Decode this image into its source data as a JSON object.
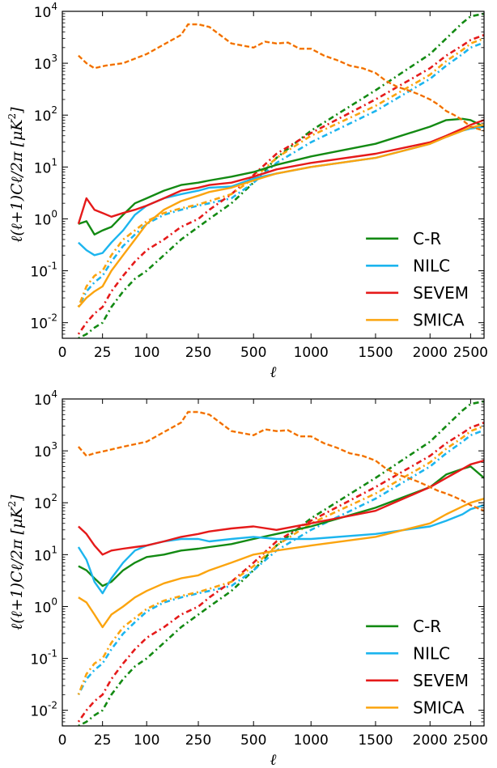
{
  "colors": {
    "C-R": "#138a13",
    "NILC": "#1cb5ee",
    "SEVEM": "#e51a1a",
    "SMICA": "#fba40f",
    "reference": "#fba40f",
    "reference_overlay": "#e51a1a"
  },
  "chart_data": [
    {
      "type": "line",
      "xlabel": "ℓ",
      "ylabel": "ℓ(ℓ+1)Cℓ/2π  [μK²]",
      "ylabel_parts": {
        "main": "ℓ(ℓ+1)Cℓ/2π",
        "unit": "[μK",
        "unit_sup": "2",
        "unit_end": "]"
      },
      "y_scale": "log",
      "ylim": [
        0.005,
        10000
      ],
      "x_scale": "piecewise",
      "x_ticks": [
        "0",
        "25",
        "100",
        "250",
        "500",
        "1000",
        "1500",
        "2000",
        "2500"
      ],
      "y_ticks": [
        {
          "base": "10",
          "exp": "-2"
        },
        {
          "base": "10",
          "exp": "-1"
        },
        {
          "base": "10",
          "exp": "0"
        },
        {
          "base": "10",
          "exp": "1"
        },
        {
          "base": "10",
          "exp": "2"
        },
        {
          "base": "10",
          "exp": "3"
        },
        {
          "base": "10",
          "exp": "4"
        }
      ],
      "legend": [
        "C-R",
        "NILC",
        "SEVEM",
        "SMICA"
      ],
      "legend_position": "lower-right",
      "reference": {
        "style": "dashed",
        "x": [
          10,
          15,
          20,
          30,
          60,
          100,
          150,
          200,
          220,
          250,
          300,
          400,
          500,
          600,
          700,
          800,
          900,
          1000,
          1100,
          1200,
          1300,
          1400,
          1500,
          1600,
          1700,
          1800,
          1900,
          2000,
          2100,
          2200,
          2300,
          2400,
          2500,
          2600
        ],
        "y": [
          1400,
          1000,
          800,
          900,
          1000,
          1500,
          2300,
          3500,
          5600,
          5600,
          5000,
          2400,
          2000,
          2600,
          2400,
          2500,
          1900,
          1900,
          1400,
          1150,
          900,
          800,
          650,
          450,
          350,
          300,
          250,
          200,
          160,
          120,
          100,
          80,
          60,
          50
        ]
      },
      "series": [
        {
          "name": "C-R",
          "style": "solid",
          "x": [
            10,
            15,
            20,
            25,
            40,
            60,
            80,
            100,
            150,
            200,
            250,
            300,
            400,
            500,
            700,
            1000,
            1500,
            2000,
            2200,
            2400,
            2500,
            2600
          ],
          "y": [
            0.8,
            0.9,
            0.5,
            0.6,
            0.7,
            1.2,
            2.0,
            2.5,
            3.5,
            4.5,
            5.0,
            5.5,
            6.5,
            8,
            11,
            16,
            28,
            60,
            80,
            85,
            80,
            60
          ]
        },
        {
          "name": "NILC",
          "style": "solid",
          "x": [
            10,
            15,
            20,
            25,
            40,
            60,
            80,
            100,
            150,
            200,
            250,
            300,
            400,
            500,
            700,
            1000,
            1500,
            2000,
            2200,
            2400,
            2500,
            2600
          ],
          "y": [
            0.35,
            0.25,
            0.2,
            0.22,
            0.35,
            0.6,
            1.2,
            1.8,
            2.5,
            3.0,
            3.5,
            4.0,
            4.2,
            6,
            7.5,
            10,
            15,
            28,
            38,
            50,
            55,
            60
          ]
        },
        {
          "name": "SEVEM",
          "style": "solid",
          "x": [
            10,
            15,
            20,
            25,
            40,
            60,
            80,
            100,
            150,
            200,
            250,
            300,
            400,
            500,
            700,
            1000,
            1500,
            2000,
            2200,
            2400,
            2500,
            2600
          ],
          "y": [
            0.8,
            2.5,
            1.5,
            1.3,
            1.1,
            1.3,
            1.5,
            1.8,
            2.5,
            3.5,
            4.0,
            4.5,
            5.0,
            6.5,
            9,
            12,
            18,
            30,
            40,
            55,
            65,
            80
          ]
        },
        {
          "name": "SMICA",
          "style": "solid",
          "x": [
            10,
            15,
            20,
            25,
            40,
            60,
            80,
            100,
            150,
            200,
            250,
            300,
            400,
            500,
            700,
            1000,
            1500,
            2000,
            2200,
            2400,
            2500,
            2600
          ],
          "y": [
            0.02,
            0.03,
            0.04,
            0.05,
            0.1,
            0.2,
            0.4,
            0.8,
            1.5,
            2.2,
            2.8,
            3.3,
            4.0,
            5.5,
            7.5,
            10,
            15,
            28,
            38,
            50,
            58,
            65
          ]
        },
        {
          "name": "C-R noise",
          "color_key": "C-R",
          "style": "dashdot",
          "x": [
            10,
            15,
            20,
            25,
            40,
            60,
            80,
            100,
            150,
            200,
            250,
            300,
            400,
            500,
            700,
            1000,
            1500,
            2000,
            2200,
            2400,
            2500,
            2600
          ],
          "y": [
            0.005,
            0.006,
            0.008,
            0.01,
            0.02,
            0.04,
            0.07,
            0.1,
            0.2,
            0.4,
            0.7,
            1.0,
            2.0,
            5,
            15,
            50,
            300,
            1500,
            3000,
            6000,
            8000,
            9000
          ]
        },
        {
          "name": "NILC noise",
          "color_key": "NILC",
          "style": "dashdot",
          "x": [
            10,
            15,
            20,
            25,
            40,
            60,
            80,
            100,
            150,
            200,
            250,
            300,
            400,
            500,
            700,
            1000,
            1500,
            2000,
            2200,
            2400,
            2500,
            2600
          ],
          "y": [
            0.02,
            0.04,
            0.06,
            0.08,
            0.15,
            0.3,
            0.5,
            0.8,
            1.2,
            1.5,
            1.8,
            2.0,
            2.5,
            5,
            12,
            30,
            120,
            500,
            900,
            1500,
            2000,
            2500
          ]
        },
        {
          "name": "SEVEM noise",
          "color_key": "SEVEM",
          "style": "dashdot",
          "x": [
            10,
            15,
            20,
            25,
            40,
            60,
            80,
            100,
            150,
            200,
            250,
            300,
            400,
            500,
            700,
            1000,
            1500,
            2000,
            2200,
            2400,
            2500,
            2600
          ],
          "y": [
            0.006,
            0.01,
            0.015,
            0.02,
            0.04,
            0.08,
            0.15,
            0.25,
            0.4,
            0.7,
            1.0,
            1.5,
            3,
            7,
            18,
            45,
            200,
            800,
            1400,
            2200,
            2800,
            3500
          ]
        },
        {
          "name": "SMICA noise",
          "color_key": "SMICA",
          "style": "dashdot",
          "x": [
            10,
            15,
            20,
            25,
            40,
            60,
            80,
            100,
            150,
            200,
            250,
            300,
            400,
            500,
            700,
            1000,
            1500,
            2000,
            2200,
            2400,
            2500,
            2600
          ],
          "y": [
            0.02,
            0.05,
            0.08,
            0.1,
            0.2,
            0.4,
            0.6,
            0.9,
            1.3,
            1.6,
            1.9,
            2.2,
            3,
            6,
            15,
            40,
            150,
            600,
            1100,
            1800,
            2400,
            3000
          ]
        }
      ]
    },
    {
      "type": "line",
      "xlabel": "ℓ",
      "ylabel": "ℓ(ℓ+1)Cℓ/2π  [μK²]",
      "ylabel_parts": {
        "main": "ℓ(ℓ+1)Cℓ/2π",
        "unit": "[μK",
        "unit_sup": "2",
        "unit_end": "]"
      },
      "y_scale": "log",
      "ylim": [
        0.005,
        10000
      ],
      "x_scale": "piecewise",
      "x_ticks": [
        "0",
        "25",
        "100",
        "250",
        "500",
        "1000",
        "1500",
        "2000",
        "2500"
      ],
      "y_ticks": [
        {
          "base": "10",
          "exp": "-2"
        },
        {
          "base": "10",
          "exp": "-1"
        },
        {
          "base": "10",
          "exp": "0"
        },
        {
          "base": "10",
          "exp": "1"
        },
        {
          "base": "10",
          "exp": "2"
        },
        {
          "base": "10",
          "exp": "3"
        },
        {
          "base": "10",
          "exp": "4"
        }
      ],
      "legend": [
        "C-R",
        "NILC",
        "SEVEM",
        "SMICA"
      ],
      "legend_position": "lower-right",
      "reference": {
        "style": "dashed",
        "x": [
          10,
          15,
          20,
          30,
          60,
          100,
          150,
          200,
          220,
          250,
          300,
          400,
          500,
          600,
          700,
          800,
          900,
          1000,
          1100,
          1200,
          1300,
          1400,
          1500,
          1600,
          1700,
          1800,
          1900,
          2000,
          2100,
          2200,
          2300,
          2400,
          2500,
          2600
        ],
        "y": [
          1200,
          800,
          900,
          1000,
          1200,
          1500,
          2300,
          3500,
          5600,
          5600,
          5000,
          2400,
          2000,
          2600,
          2400,
          2500,
          1900,
          1900,
          1400,
          1150,
          900,
          800,
          650,
          450,
          350,
          300,
          250,
          200,
          170,
          150,
          130,
          110,
          90,
          70
        ]
      },
      "series": [
        {
          "name": "C-R",
          "style": "solid",
          "x": [
            10,
            15,
            20,
            25,
            40,
            60,
            80,
            100,
            150,
            200,
            250,
            300,
            400,
            500,
            700,
            1000,
            1500,
            2000,
            2200,
            2400,
            2500,
            2600
          ],
          "y": [
            6,
            5,
            3.5,
            2.5,
            3.0,
            5,
            7,
            9,
            10,
            12,
            13,
            14,
            16,
            20,
            25,
            35,
            80,
            200,
            350,
            450,
            500,
            300
          ]
        },
        {
          "name": "NILC",
          "style": "solid",
          "x": [
            10,
            15,
            20,
            25,
            40,
            60,
            80,
            100,
            150,
            200,
            250,
            300,
            400,
            500,
            700,
            1000,
            1500,
            2000,
            2200,
            2400,
            2500,
            2600
          ],
          "y": [
            14,
            8,
            3,
            1.8,
            3.5,
            7,
            12,
            15,
            18,
            20,
            20,
            18,
            20,
            22,
            20,
            20,
            25,
            35,
            45,
            60,
            75,
            90
          ]
        },
        {
          "name": "SEVEM",
          "style": "solid",
          "x": [
            10,
            15,
            20,
            25,
            40,
            60,
            80,
            100,
            150,
            200,
            250,
            300,
            400,
            500,
            700,
            1000,
            1500,
            2000,
            2200,
            2400,
            2500,
            2600
          ],
          "y": [
            35,
            25,
            15,
            10,
            12,
            13,
            14,
            15,
            18,
            22,
            25,
            28,
            32,
            35,
            30,
            40,
            70,
            200,
            300,
            450,
            550,
            650
          ]
        },
        {
          "name": "SMICA",
          "style": "solid",
          "x": [
            10,
            15,
            20,
            25,
            40,
            60,
            80,
            100,
            150,
            200,
            250,
            300,
            400,
            500,
            700,
            1000,
            1500,
            2000,
            2200,
            2400,
            2500,
            2600
          ],
          "y": [
            1.5,
            1.2,
            0.7,
            0.4,
            0.7,
            1.0,
            1.5,
            2.0,
            2.8,
            3.5,
            4,
            5,
            7,
            10,
            12,
            15,
            22,
            40,
            60,
            85,
            100,
            120
          ]
        },
        {
          "name": "C-R noise",
          "color_key": "C-R",
          "style": "dashdot",
          "x": [
            10,
            15,
            20,
            25,
            40,
            60,
            80,
            100,
            150,
            200,
            250,
            300,
            400,
            500,
            700,
            1000,
            1500,
            2000,
            2200,
            2400,
            2500,
            2600
          ],
          "y": [
            0.005,
            0.006,
            0.008,
            0.01,
            0.02,
            0.04,
            0.07,
            0.1,
            0.2,
            0.4,
            0.7,
            1.0,
            2.0,
            5,
            15,
            50,
            300,
            1500,
            3000,
            6000,
            8000,
            9000
          ]
        },
        {
          "name": "NILC noise",
          "color_key": "NILC",
          "style": "dashdot",
          "x": [
            10,
            15,
            20,
            25,
            40,
            60,
            80,
            100,
            150,
            200,
            250,
            300,
            400,
            500,
            700,
            1000,
            1500,
            2000,
            2200,
            2400,
            2500,
            2600
          ],
          "y": [
            0.02,
            0.04,
            0.06,
            0.08,
            0.15,
            0.3,
            0.5,
            0.8,
            1.2,
            1.5,
            1.8,
            2.0,
            2.5,
            5,
            12,
            30,
            120,
            500,
            900,
            1500,
            2000,
            2500
          ]
        },
        {
          "name": "SEVEM noise",
          "color_key": "SEVEM",
          "style": "dashdot",
          "x": [
            10,
            15,
            20,
            25,
            40,
            60,
            80,
            100,
            150,
            200,
            250,
            300,
            400,
            500,
            700,
            1000,
            1500,
            2000,
            2200,
            2400,
            2500,
            2600
          ],
          "y": [
            0.006,
            0.01,
            0.015,
            0.02,
            0.04,
            0.08,
            0.15,
            0.25,
            0.4,
            0.7,
            1.0,
            1.5,
            3,
            7,
            18,
            45,
            200,
            800,
            1400,
            2200,
            2800,
            3500
          ]
        },
        {
          "name": "SMICA noise",
          "color_key": "SMICA",
          "style": "dashdot",
          "x": [
            10,
            15,
            20,
            25,
            40,
            60,
            80,
            100,
            150,
            200,
            250,
            300,
            400,
            500,
            700,
            1000,
            1500,
            2000,
            2200,
            2400,
            2500,
            2600
          ],
          "y": [
            0.02,
            0.05,
            0.08,
            0.1,
            0.2,
            0.4,
            0.6,
            0.9,
            1.3,
            1.6,
            1.9,
            2.2,
            3,
            6,
            15,
            40,
            150,
            600,
            1100,
            1800,
            2400,
            3000
          ]
        }
      ]
    }
  ]
}
